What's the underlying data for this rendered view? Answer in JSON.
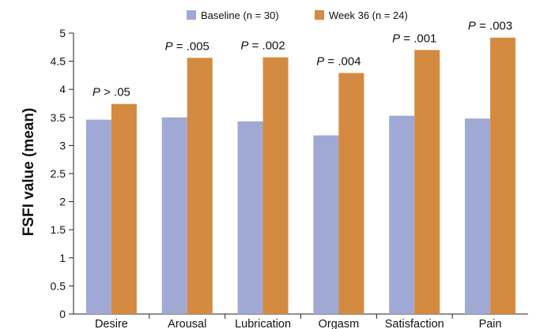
{
  "chart_data": {
    "type": "bar",
    "ylabel": "FSFI value (mean)",
    "ylim": [
      0,
      5
    ],
    "yticks": [
      "0",
      "0.5",
      "1",
      "1.5",
      "2",
      "2.5",
      "3",
      "3.5",
      "4",
      "4.5",
      "5"
    ],
    "categories": [
      "Desire",
      "Arousal",
      "Lubrication",
      "Orgasm",
      "Satisfaction",
      "Pain"
    ],
    "series": [
      {
        "name": "Baseline (n = 30)",
        "color": "#9fa9d4",
        "values": [
          3.46,
          3.5,
          3.43,
          3.18,
          3.53,
          3.48
        ]
      },
      {
        "name": "Week 36 (n = 24)",
        "color": "#d48a40",
        "values": [
          3.74,
          4.56,
          4.57,
          4.29,
          4.7,
          4.92
        ]
      }
    ],
    "annotations": [
      {
        "prefix": "P",
        "text": " > .05"
      },
      {
        "prefix": "P",
        "text": " = .005"
      },
      {
        "prefix": "P",
        "text": " = .002"
      },
      {
        "prefix": "P",
        "text": " = .004"
      },
      {
        "prefix": "P",
        "text": " = .001"
      },
      {
        "prefix": "P",
        "text": " = .003"
      }
    ],
    "legend_position": "top",
    "grid": false
  }
}
